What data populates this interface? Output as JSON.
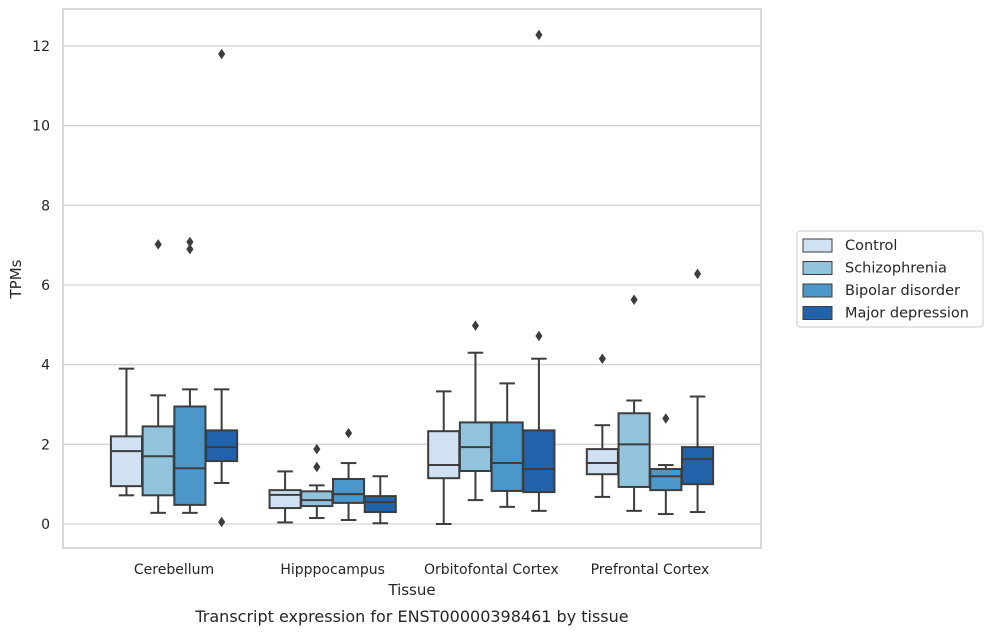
{
  "chart_data": {
    "type": "box",
    "caption": "Transcript expression for ENST00000398461 by tissue",
    "xlabel": "Tissue",
    "ylabel": "TPMs",
    "ylim": [
      -0.6,
      12.9
    ],
    "yticks": [
      0,
      2,
      4,
      6,
      8,
      10,
      12
    ],
    "grid": "horizontal",
    "legend_position": "right",
    "categories": [
      "Cerebellum",
      "Hipppocampus",
      "Orbitofontal Cortex",
      "Prefrontal Cortex"
    ],
    "series": [
      {
        "name": "Control",
        "color": "#cfe1f2",
        "boxes": [
          {
            "whislo": 0.72,
            "q1": 0.95,
            "med": 1.83,
            "q3": 2.2,
            "whishi": 3.9,
            "fliers": []
          },
          {
            "whislo": 0.04,
            "q1": 0.4,
            "med": 0.73,
            "q3": 0.85,
            "whishi": 1.32,
            "fliers": []
          },
          {
            "whislo": 0.0,
            "q1": 1.15,
            "med": 1.48,
            "q3": 2.33,
            "whishi": 3.33,
            "fliers": []
          },
          {
            "whislo": 0.68,
            "q1": 1.25,
            "med": 1.53,
            "q3": 1.88,
            "whishi": 2.48,
            "fliers": [
              4.15
            ]
          }
        ]
      },
      {
        "name": "Schizophrenia",
        "color": "#93c4de",
        "boxes": [
          {
            "whislo": 0.28,
            "q1": 0.72,
            "med": 1.7,
            "q3": 2.45,
            "whishi": 3.23,
            "fliers": [
              7.02
            ]
          },
          {
            "whislo": 0.15,
            "q1": 0.45,
            "med": 0.6,
            "q3": 0.82,
            "whishi": 0.97,
            "fliers": [
              1.88,
              1.43
            ]
          },
          {
            "whislo": 0.6,
            "q1": 1.33,
            "med": 1.93,
            "q3": 2.55,
            "whishi": 4.3,
            "fliers": [
              4.98
            ]
          },
          {
            "whislo": 0.33,
            "q1": 0.93,
            "med": 2.0,
            "q3": 2.78,
            "whishi": 3.1,
            "fliers": [
              5.63
            ]
          }
        ]
      },
      {
        "name": "Bipolar disorder",
        "color": "#4b97c9",
        "boxes": [
          {
            "whislo": 0.28,
            "q1": 0.48,
            "med": 1.4,
            "q3": 2.95,
            "whishi": 3.38,
            "fliers": [
              7.08,
              6.9
            ]
          },
          {
            "whislo": 0.1,
            "q1": 0.53,
            "med": 0.75,
            "q3": 1.13,
            "whishi": 1.53,
            "fliers": [
              2.28
            ]
          },
          {
            "whislo": 0.43,
            "q1": 0.83,
            "med": 1.53,
            "q3": 2.55,
            "whishi": 3.53,
            "fliers": []
          },
          {
            "whislo": 0.25,
            "q1": 0.85,
            "med": 1.2,
            "q3": 1.38,
            "whishi": 1.48,
            "fliers": [
              2.65
            ]
          }
        ]
      },
      {
        "name": "Major depression",
        "color": "#2063aa",
        "boxes": [
          {
            "whislo": 1.03,
            "q1": 1.58,
            "med": 1.93,
            "q3": 2.35,
            "whishi": 3.38,
            "fliers": [
              11.8,
              0.05
            ]
          },
          {
            "whislo": 0.02,
            "q1": 0.3,
            "med": 0.55,
            "q3": 0.7,
            "whishi": 1.2,
            "fliers": []
          },
          {
            "whislo": 0.33,
            "q1": 0.8,
            "med": 1.38,
            "q3": 2.35,
            "whishi": 4.15,
            "fliers": [
              12.28,
              4.72
            ]
          },
          {
            "whislo": 0.3,
            "q1": 1.0,
            "med": 1.63,
            "q3": 1.93,
            "whishi": 3.2,
            "fliers": [
              6.28
            ]
          }
        ]
      }
    ]
  }
}
